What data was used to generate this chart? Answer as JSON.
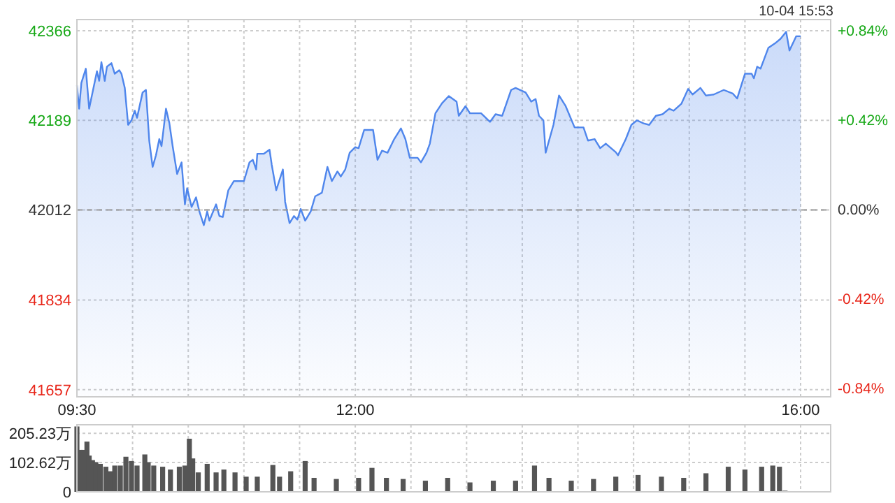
{
  "chart_data": [
    {
      "type": "area",
      "subtitle": "10-04 15:53",
      "color": "#4f86ec",
      "grid": true,
      "x": [
        9.5,
        9.52,
        9.54,
        9.58,
        9.61,
        9.68,
        9.7,
        9.72,
        9.75,
        9.77,
        9.81,
        9.84,
        9.88,
        9.9,
        9.93,
        9.96,
        9.99,
        10.02,
        10.04,
        10.09,
        10.12,
        10.15,
        10.18,
        10.21,
        10.24,
        10.26,
        10.3,
        10.33,
        10.36,
        10.4,
        10.44,
        10.47,
        10.49,
        10.53,
        10.57,
        10.6,
        10.64,
        10.67,
        10.69,
        10.75,
        10.78,
        10.81,
        10.86,
        10.91,
        10.97,
        11.0,
        11.05,
        11.08,
        11.11,
        11.12,
        11.18,
        11.23,
        11.25,
        11.29,
        11.35,
        11.37,
        11.41,
        11.45,
        11.48,
        11.51,
        11.55,
        11.6,
        11.64,
        11.7,
        11.75,
        11.79,
        11.84,
        11.87,
        11.91,
        11.95,
        12.0,
        12.03,
        12.08,
        12.16,
        12.2,
        12.24,
        12.29,
        12.35,
        12.41,
        12.45,
        12.49,
        12.56,
        12.59,
        12.64,
        12.67,
        12.72,
        12.78,
        12.84,
        12.91,
        12.93,
        12.99,
        13.03,
        13.13,
        13.21,
        13.26,
        13.32,
        13.4,
        13.44,
        13.53,
        13.58,
        13.62,
        13.65,
        13.69,
        13.71,
        13.78,
        13.83,
        13.89,
        13.97,
        14.05,
        14.09,
        14.15,
        14.2,
        14.25,
        14.34,
        14.36,
        14.43,
        14.48,
        14.53,
        14.59,
        14.64,
        14.7,
        14.76,
        14.82,
        14.86,
        14.93,
        14.99,
        15.03,
        15.1,
        15.15,
        15.22,
        15.31,
        15.39,
        15.43,
        15.5,
        15.56,
        15.58,
        15.61,
        15.64,
        15.71,
        15.77,
        15.82,
        15.87,
        15.9,
        15.96,
        16.0
      ],
      "values": [
        42258,
        42212,
        42263,
        42291,
        42212,
        42286,
        42267,
        42304,
        42267,
        42295,
        42302,
        42281,
        42288,
        42281,
        42253,
        42180,
        42189,
        42208,
        42194,
        42244,
        42249,
        42148,
        42097,
        42120,
        42152,
        42138,
        42212,
        42184,
        42138,
        42083,
        42106,
        42023,
        42055,
        42018,
        42037,
        42009,
        41982,
        42009,
        41991,
        42023,
        42000,
        41998,
        42051,
        42069,
        42069,
        42069,
        42106,
        42111,
        42092,
        42123,
        42123,
        42131,
        42101,
        42051,
        42092,
        42028,
        41986,
        42000,
        41993,
        42014,
        41991,
        42009,
        42039,
        42046,
        42097,
        42069,
        42088,
        42078,
        42092,
        42125,
        42136,
        42134,
        42170,
        42170,
        42111,
        42129,
        42125,
        42152,
        42173,
        42152,
        42115,
        42115,
        42106,
        42125,
        42143,
        42203,
        42223,
        42237,
        42226,
        42198,
        42217,
        42203,
        42203,
        42186,
        42201,
        42198,
        42249,
        42253,
        42244,
        42226,
        42231,
        42198,
        42189,
        42125,
        42180,
        42238,
        42217,
        42175,
        42175,
        42149,
        42152,
        42134,
        42143,
        42126,
        42120,
        42152,
        42180,
        42189,
        42183,
        42180,
        42198,
        42201,
        42212,
        42208,
        42222,
        42251,
        42240,
        42253,
        42238,
        42240,
        42249,
        42242,
        42232,
        42281,
        42281,
        42272,
        42295,
        42291,
        42332,
        42341,
        42350,
        42364,
        42327,
        42355,
        42355
      ],
      "xlim": [
        9.5,
        16.27
      ],
      "xticks": [
        {
          "value": 9.5,
          "label": "09:30"
        },
        {
          "value": 10,
          "label": null
        },
        {
          "value": 10.5,
          "label": null
        },
        {
          "value": 11,
          "label": null
        },
        {
          "value": 11.5,
          "label": null
        },
        {
          "value": 12,
          "label": "12:00"
        },
        {
          "value": 12.5,
          "label": null
        },
        {
          "value": 13,
          "label": null
        },
        {
          "value": 13.5,
          "label": null
        },
        {
          "value": 14,
          "label": null
        },
        {
          "value": 14.5,
          "label": null
        },
        {
          "value": 15,
          "label": null
        },
        {
          "value": 15.5,
          "label": null
        },
        {
          "value": 16,
          "label": "16:00"
        }
      ],
      "ylim": [
        41643,
        42388
      ],
      "yticks": [
        41657,
        41834,
        42012,
        42189,
        42366
      ],
      "y2lim": [
        -0.88,
        0.89
      ],
      "y2ticks": [
        {
          "value": -0.84,
          "label": "-0.84%"
        },
        {
          "value": -0.42,
          "label": "-0.42%"
        },
        {
          "value": 0,
          "label": "0.00%"
        },
        {
          "value": 0.42,
          "label": "+0.42%"
        },
        {
          "value": 0.84,
          "label": "+0.84%"
        }
      ],
      "ref_lines": [
        {
          "axis": "y",
          "value": 42012,
          "color": "#999999",
          "line_style": "dashed"
        }
      ]
    },
    {
      "type": "bar",
      "color": "#555555",
      "grid": true,
      "tick_labels": "y",
      "x": [
        9.5,
        9.53,
        9.56,
        9.59,
        9.61,
        9.64,
        9.67,
        9.71,
        9.76,
        9.8,
        9.84,
        9.89,
        9.94,
        9.99,
        10.04,
        10.11,
        10.14,
        10.19,
        10.27,
        10.34,
        10.42,
        10.47,
        10.51,
        10.54,
        10.59,
        10.67,
        10.75,
        10.82,
        10.92,
        11.02,
        11.12,
        11.26,
        11.32,
        11.42,
        11.55,
        11.63,
        11.83,
        12.03,
        12.15,
        12.28,
        12.43,
        12.63,
        12.83,
        13.03,
        13.24,
        13.44,
        13.61,
        13.74,
        13.94,
        14.14,
        14.34,
        14.54,
        14.75,
        14.95,
        15.15,
        15.35,
        15.5,
        15.65,
        15.75,
        15.81,
        15.86
      ],
      "values": [
        229,
        147,
        147,
        176,
        127,
        111,
        104,
        98,
        88,
        72,
        92,
        92,
        123,
        108,
        92,
        131,
        104,
        92,
        88,
        78,
        88,
        92,
        186,
        117,
        68,
        98,
        68,
        78,
        68,
        53,
        53,
        94,
        53,
        72,
        108,
        49,
        45,
        49,
        84,
        49,
        45,
        39,
        49,
        33,
        39,
        39,
        92,
        49,
        39,
        45,
        53,
        59,
        53,
        49,
        65,
        88,
        78,
        88,
        92,
        88,
        4
      ],
      "xlim": [
        9.5,
        16.27
      ],
      "xticks": [
        {
          "value": 9.5,
          "label": null
        },
        {
          "value": 10,
          "label": null
        },
        {
          "value": 10.5,
          "label": null
        },
        {
          "value": 11,
          "label": null
        },
        {
          "value": 11.5,
          "label": null
        },
        {
          "value": 12,
          "label": null
        },
        {
          "value": 12.5,
          "label": null
        },
        {
          "value": 13,
          "label": null
        },
        {
          "value": 13.5,
          "label": null
        },
        {
          "value": 14,
          "label": null
        },
        {
          "value": 14.5,
          "label": null
        },
        {
          "value": 15,
          "label": null
        },
        {
          "value": 15.5,
          "label": null
        },
        {
          "value": 16,
          "label": null
        }
      ],
      "ylim": [
        0,
        235
      ],
      "yticks": [
        {
          "value": 0,
          "label": "0"
        },
        {
          "value": 102.62,
          "label": "102.62万"
        },
        {
          "value": 205.23,
          "label": "205.23万"
        }
      ]
    }
  ]
}
